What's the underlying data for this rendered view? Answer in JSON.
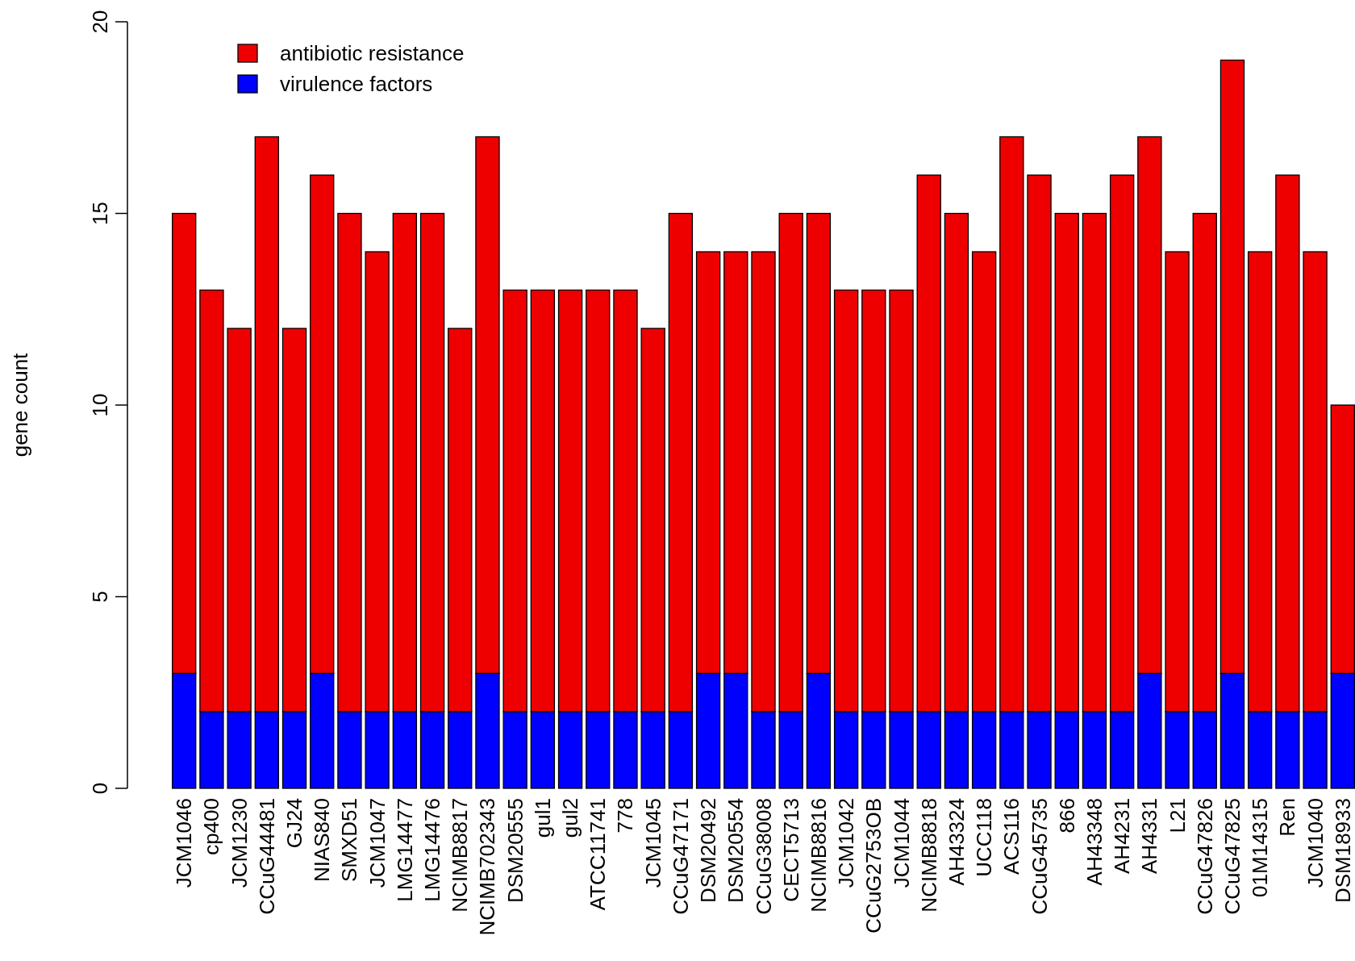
{
  "chart_data": {
    "type": "bar",
    "stacked": true,
    "ylabel": "gene count",
    "legend": "top left",
    "ylim": [
      0,
      20
    ],
    "yticks": [
      0,
      5,
      10,
      15,
      20
    ],
    "categories": [
      "JCM1046",
      "cp400",
      "JCM1230",
      "CCuG44481",
      "GJ24",
      "NIAS840",
      "SMXD51",
      "JCM1047",
      "LMG14477",
      "LMG14476",
      "NCIMB8817",
      "NCIMB702343",
      "DSM20555",
      "gul1",
      "gul2",
      "ATCC11741",
      "778",
      "JCM1045",
      "CCuG47171",
      "DSM20492",
      "DSM20554",
      "CCuG38008",
      "CECT5713",
      "NCIMB8816",
      "JCM1042",
      "CCuG2753OB",
      "JCM1044",
      "NCIMB8818",
      "AH43324",
      "UCC118",
      "ACS116",
      "CCuG45735",
      "866",
      "AH43348",
      "AH4231",
      "AH4331",
      "L21",
      "CCuG47826",
      "CCuG47825",
      "01M14315",
      "Ren",
      "JCM1040",
      "DSM18933"
    ],
    "series": [
      {
        "name": "virulence factors",
        "color": "#0000ff",
        "values": [
          3,
          2,
          2,
          2,
          2,
          3,
          2,
          2,
          2,
          2,
          2,
          3,
          2,
          2,
          2,
          2,
          2,
          2,
          2,
          3,
          3,
          2,
          2,
          3,
          2,
          2,
          2,
          2,
          2,
          2,
          2,
          2,
          2,
          2,
          2,
          3,
          2,
          2,
          3,
          2,
          2,
          2,
          3
        ]
      },
      {
        "name": "antibiotic resistance",
        "color": "#ee0000",
        "values": [
          12,
          11,
          10,
          15,
          10,
          13,
          13,
          12,
          13,
          13,
          10,
          14,
          11,
          11,
          11,
          11,
          11,
          10,
          13,
          11,
          11,
          12,
          13,
          12,
          11,
          11,
          11,
          14,
          13,
          12,
          15,
          14,
          13,
          13,
          14,
          14,
          12,
          13,
          16,
          12,
          14,
          12,
          7
        ]
      }
    ]
  }
}
